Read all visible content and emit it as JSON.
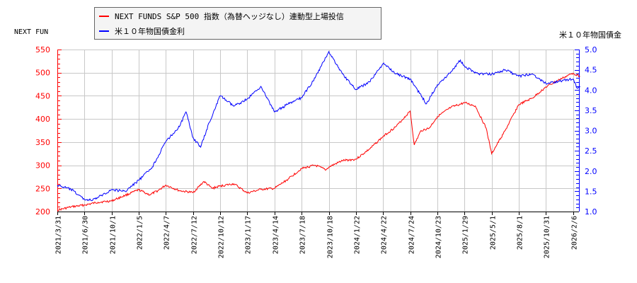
{
  "chart_data": {
    "type": "line",
    "title": "",
    "left_axis_title": "NEXT FUN",
    "right_axis_title": "米１０年物国債金",
    "legend": [
      {
        "label": "NEXT FUNDS S&P 500 指数（為替ヘッジなし）連動型上場投信",
        "color": "#ff0000"
      },
      {
        "label": "米１０年物国債金利",
        "color": "#0000ff"
      }
    ],
    "legend_position": "top",
    "grid": true,
    "x_tick_labels": [
      "2021/3/31",
      "2021/6/30",
      "2021/10/1",
      "2022/1/5",
      "2022/4/7",
      "2022/7/12",
      "2022/10/12",
      "2023/1/17",
      "2023/4/14",
      "2023/7/18",
      "2023/10/18",
      "2024/1/22",
      "2024/4/22",
      "2024/7/24",
      "2024/10/23",
      "2025/1/29",
      "2025/5/1",
      "2025/8/1",
      "2025/10/31",
      "2026/2/6"
    ],
    "left_axis": {
      "ylim": [
        200,
        550
      ],
      "ticks": [
        200,
        250,
        300,
        350,
        400,
        450,
        500,
        550
      ],
      "color": "#ff0000"
    },
    "right_axis": {
      "ylim": [
        1.0,
        5.0
      ],
      "ticks": [
        "1.0",
        "1.5",
        "2.0",
        "2.5",
        "3.0",
        "3.5",
        "4.0",
        "4.5",
        "5.0"
      ],
      "color": "#0000ff"
    },
    "series": [
      {
        "name": "NEXT FUNDS S&P 500 指数（為替ヘッジなし）連動型上場投信",
        "axis": "left",
        "color": "#ff0000",
        "points": [
          [
            0,
            203
          ],
          [
            0.5,
            210
          ],
          [
            1,
            214
          ],
          [
            1.5,
            220
          ],
          [
            2,
            223
          ],
          [
            2.5,
            235
          ],
          [
            3,
            247
          ],
          [
            3.4,
            236
          ],
          [
            3.7,
            245
          ],
          [
            4,
            257
          ],
          [
            4.5,
            245
          ],
          [
            5,
            241
          ],
          [
            5.4,
            265
          ],
          [
            5.7,
            250
          ],
          [
            6,
            255
          ],
          [
            6.5,
            260
          ],
          [
            7,
            240
          ],
          [
            7.5,
            248
          ],
          [
            8,
            250
          ],
          [
            8.5,
            270
          ],
          [
            9,
            293
          ],
          [
            9.5,
            300
          ],
          [
            9.9,
            290
          ],
          [
            10,
            296
          ],
          [
            10.5,
            310
          ],
          [
            11,
            313
          ],
          [
            11.5,
            335
          ],
          [
            12,
            362
          ],
          [
            12.5,
            385
          ],
          [
            13,
            417
          ],
          [
            13.15,
            344
          ],
          [
            13.4,
            375
          ],
          [
            13.7,
            380
          ],
          [
            14,
            405
          ],
          [
            14.5,
            425
          ],
          [
            15,
            435
          ],
          [
            15.4,
            428
          ],
          [
            15.8,
            380
          ],
          [
            16.0,
            325
          ],
          [
            16.2,
            345
          ],
          [
            16.5,
            375
          ],
          [
            17,
            431
          ],
          [
            17.5,
            445
          ],
          [
            18,
            469
          ],
          [
            18.5,
            485
          ],
          [
            19,
            499
          ],
          [
            19.26,
            492
          ]
        ]
      },
      {
        "name": "米１０年物国債金利",
        "axis": "right",
        "color": "#0000ff",
        "points": [
          [
            0,
            1.65
          ],
          [
            0.5,
            1.55
          ],
          [
            1,
            1.3
          ],
          [
            1.3,
            1.28
          ],
          [
            1.5,
            1.35
          ],
          [
            2,
            1.54
          ],
          [
            2.5,
            1.5
          ],
          [
            3,
            1.77
          ],
          [
            3.5,
            2.1
          ],
          [
            4,
            2.73
          ],
          [
            4.5,
            3.1
          ],
          [
            4.74,
            3.46
          ],
          [
            5,
            2.82
          ],
          [
            5.28,
            2.59
          ],
          [
            5.6,
            3.2
          ],
          [
            6,
            3.86
          ],
          [
            6.5,
            3.6
          ],
          [
            7,
            3.78
          ],
          [
            7.5,
            4.09
          ],
          [
            8,
            3.46
          ],
          [
            8.5,
            3.65
          ],
          [
            9,
            3.81
          ],
          [
            9.5,
            4.3
          ],
          [
            10,
            4.95
          ],
          [
            10.5,
            4.4
          ],
          [
            11,
            4.01
          ],
          [
            11.5,
            4.2
          ],
          [
            12,
            4.65
          ],
          [
            12.5,
            4.4
          ],
          [
            13,
            4.27
          ],
          [
            13.6,
            3.66
          ],
          [
            14,
            4.13
          ],
          [
            14.5,
            4.45
          ],
          [
            14.85,
            4.74
          ],
          [
            15,
            4.58
          ],
          [
            15.5,
            4.4
          ],
          [
            16,
            4.39
          ],
          [
            16.5,
            4.5
          ],
          [
            17,
            4.34
          ],
          [
            17.5,
            4.4
          ],
          [
            18,
            4.16
          ],
          [
            18.5,
            4.22
          ],
          [
            19,
            4.27
          ],
          [
            19.15,
            4.05
          ],
          [
            19.26,
            4.09
          ]
        ]
      }
    ]
  }
}
